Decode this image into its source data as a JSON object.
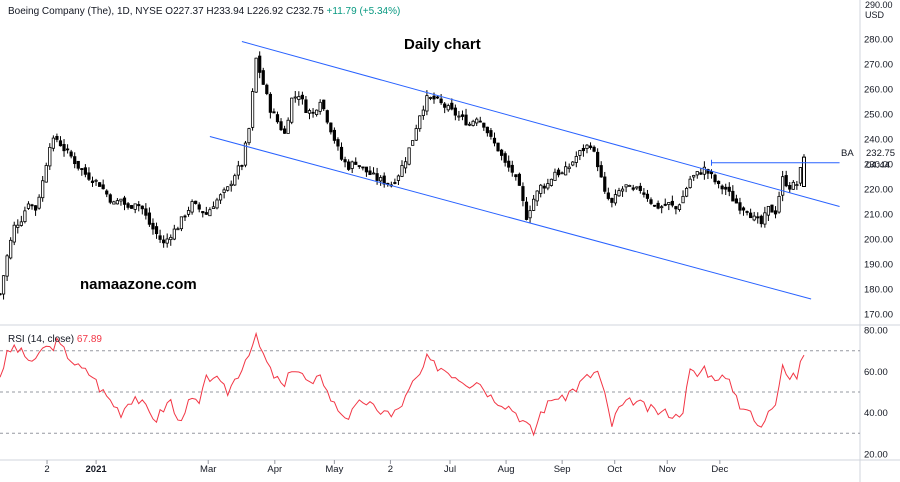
{
  "header": {
    "symbol_line": "Boeing Company (The), 1D, NYSE  O227.37  H233.94  L226.92  C232.75",
    "change": "+11.79 (+5.34%)"
  },
  "title": "Daily chart",
  "watermark": "namaazone.com",
  "price_axis": {
    "currency_top": "290.00",
    "currency": "USD"
  },
  "last_price": {
    "value": "232.75",
    "time_left": "04:44",
    "ticker": "BA"
  },
  "rsi": {
    "label": "RSI (14, close)",
    "value": "67.89"
  },
  "colors": {
    "up": "#000000",
    "down": "#000000",
    "channel": "#2962ff",
    "rsi_line": "#f23645",
    "rsi_bands": "#9598a1",
    "grid": "#e0e3eb",
    "level": "#2962ff"
  },
  "chart_data": [
    {
      "type": "candlestick",
      "title": "Daily chart",
      "x_tick_labels": [
        "2",
        "2021",
        "Mar",
        "Apr",
        "May",
        "2",
        "Jul",
        "Aug",
        "Sep",
        "Oct",
        "Nov",
        "Dec"
      ],
      "y_ticks": [
        170,
        180,
        190,
        200,
        210,
        220,
        230,
        240,
        250,
        260,
        270,
        280
      ],
      "ylim": [
        166,
        290
      ],
      "x_range_trading_days": [
        0,
        235
      ],
      "series": [
        {
          "name": "BA",
          "approx_close_path": [
            [
              0,
              178
            ],
            [
              2,
              193
            ],
            [
              4,
              205
            ],
            [
              6,
              208
            ],
            [
              8,
              215
            ],
            [
              10,
              212
            ],
            [
              12,
              223
            ],
            [
              14,
              238
            ],
            [
              16,
              240
            ],
            [
              18,
              236
            ],
            [
              20,
              233
            ],
            [
              22,
              229
            ],
            [
              24,
              226
            ],
            [
              26,
              224
            ],
            [
              28,
              222
            ],
            [
              30,
              218
            ],
            [
              32,
              214
            ],
            [
              34,
              216
            ],
            [
              36,
              212
            ],
            [
              38,
              215
            ],
            [
              40,
              212
            ],
            [
              42,
              206
            ],
            [
              44,
              202
            ],
            [
              46,
              198
            ],
            [
              48,
              202
            ],
            [
              50,
              205
            ],
            [
              52,
              210
            ],
            [
              54,
              214
            ],
            [
              56,
              212
            ],
            [
              58,
              210
            ],
            [
              60,
              214
            ],
            [
              62,
              217
            ],
            [
              64,
              220
            ],
            [
              66,
              226
            ],
            [
              68,
              230
            ],
            [
              70,
              244
            ],
            [
              72,
              272
            ],
            [
              74,
              262
            ],
            [
              76,
              252
            ],
            [
              78,
              247
            ],
            [
              80,
              242
            ],
            [
              82,
              256
            ],
            [
              84,
              258
            ],
            [
              86,
              252
            ],
            [
              88,
              250
            ],
            [
              90,
              256
            ],
            [
              92,
              248
            ],
            [
              94,
              240
            ],
            [
              96,
              232
            ],
            [
              98,
              229
            ],
            [
              100,
              231
            ],
            [
              102,
              228
            ],
            [
              104,
              226
            ],
            [
              106,
              224
            ],
            [
              108,
              223
            ],
            [
              110,
              222
            ],
            [
              112,
              226
            ],
            [
              114,
              232
            ],
            [
              116,
              240
            ],
            [
              118,
              250
            ],
            [
              120,
              256
            ],
            [
              122,
              256
            ],
            [
              124,
              254
            ],
            [
              126,
              252
            ],
            [
              128,
              250
            ],
            [
              130,
              248
            ],
            [
              132,
              246
            ],
            [
              134,
              249
            ],
            [
              136,
              246
            ],
            [
              138,
              240
            ],
            [
              140,
              236
            ],
            [
              142,
              230
            ],
            [
              144,
              227
            ],
            [
              146,
              220
            ],
            [
              148,
              209
            ],
            [
              150,
              216
            ],
            [
              152,
              221
            ],
            [
              154,
              222
            ],
            [
              156,
              227
            ],
            [
              158,
              226
            ],
            [
              160,
              229
            ],
            [
              162,
              233
            ],
            [
              164,
              236
            ],
            [
              166,
              238
            ],
            [
              168,
              230
            ],
            [
              170,
              218
            ],
            [
              172,
              214
            ],
            [
              174,
              219
            ],
            [
              176,
              221
            ],
            [
              178,
              219
            ],
            [
              180,
              220
            ],
            [
              182,
              217
            ],
            [
              184,
              213
            ],
            [
              186,
              213
            ],
            [
              188,
              214
            ],
            [
              190,
              212
            ],
            [
              192,
              217
            ],
            [
              194,
              224
            ],
            [
              196,
              226
            ],
            [
              198,
              228
            ],
            [
              200,
              225
            ],
            [
              202,
              221
            ],
            [
              204,
              220
            ],
            [
              206,
              216
            ],
            [
              208,
              213
            ],
            [
              210,
              212
            ],
            [
              212,
              208
            ],
            [
              214,
              206
            ],
            [
              216,
              212
            ],
            [
              218,
              211
            ],
            [
              220,
              224
            ],
            [
              222,
              221
            ],
            [
              224,
              222
            ],
            [
              226,
              232.75
            ]
          ]
        }
      ],
      "annotations": {
        "channel_upper": [
          [
            68,
            279
          ],
          [
            236,
            213
          ]
        ],
        "channel_lower": [
          [
            59,
            241
          ],
          [
            228,
            176
          ]
        ],
        "resistance_level": [
          [
            200,
            230.5
          ],
          [
            236,
            230.5
          ]
        ]
      }
    },
    {
      "type": "line",
      "title": "RSI (14, close)",
      "y_ticks": [
        20,
        40,
        60,
        80
      ],
      "ylim": [
        18,
        82
      ],
      "bands": [
        30,
        50,
        70
      ],
      "series": [
        {
          "name": "RSI (14, close)",
          "approx_path": [
            [
              0,
              58
            ],
            [
              2,
              68
            ],
            [
              4,
              72
            ],
            [
              6,
              69
            ],
            [
              8,
              66
            ],
            [
              10,
              64
            ],
            [
              12,
              72
            ],
            [
              14,
              71
            ],
            [
              16,
              74
            ],
            [
              18,
              70
            ],
            [
              20,
              66
            ],
            [
              22,
              62
            ],
            [
              24,
              60
            ],
            [
              26,
              58
            ],
            [
              28,
              52
            ],
            [
              30,
              48
            ],
            [
              32,
              44
            ],
            [
              34,
              40
            ],
            [
              36,
              45
            ],
            [
              38,
              48
            ],
            [
              40,
              44
            ],
            [
              42,
              40
            ],
            [
              44,
              37
            ],
            [
              46,
              42
            ],
            [
              48,
              46
            ],
            [
              50,
              35
            ],
            [
              52,
              42
            ],
            [
              54,
              46
            ],
            [
              56,
              44
            ],
            [
              58,
              56
            ],
            [
              60,
              58
            ],
            [
              62,
              53
            ],
            [
              64,
              50
            ],
            [
              66,
              56
            ],
            [
              68,
              62
            ],
            [
              70,
              70
            ],
            [
              72,
              76
            ],
            [
              74,
              68
            ],
            [
              76,
              60
            ],
            [
              78,
              56
            ],
            [
              80,
              52
            ],
            [
              82,
              62
            ],
            [
              84,
              60
            ],
            [
              86,
              56
            ],
            [
              88,
              52
            ],
            [
              90,
              60
            ],
            [
              92,
              50
            ],
            [
              94,
              44
            ],
            [
              96,
              40
            ],
            [
              98,
              38
            ],
            [
              100,
              42
            ],
            [
              102,
              46
            ],
            [
              104,
              44
            ],
            [
              106,
              40
            ],
            [
              108,
              42
            ],
            [
              110,
              38
            ],
            [
              112,
              42
            ],
            [
              114,
              47
            ],
            [
              116,
              54
            ],
            [
              118,
              58
            ],
            [
              120,
              66
            ],
            [
              122,
              63
            ],
            [
              124,
              62
            ],
            [
              126,
              60
            ],
            [
              128,
              58
            ],
            [
              130,
              56
            ],
            [
              132,
              54
            ],
            [
              134,
              56
            ],
            [
              136,
              52
            ],
            [
              138,
              48
            ],
            [
              140,
              46
            ],
            [
              142,
              44
            ],
            [
              144,
              42
            ],
            [
              146,
              38
            ],
            [
              148,
              34
            ],
            [
              150,
              30
            ],
            [
              152,
              40
            ],
            [
              154,
              44
            ],
            [
              156,
              48
            ],
            [
              158,
              46
            ],
            [
              160,
              50
            ],
            [
              162,
              52
            ],
            [
              164,
              56
            ],
            [
              166,
              58
            ],
            [
              168,
              60
            ],
            [
              170,
              48
            ],
            [
              172,
              34
            ],
            [
              174,
              42
            ],
            [
              176,
              44
            ],
            [
              178,
              46
            ],
            [
              180,
              44
            ],
            [
              182,
              42
            ],
            [
              184,
              41
            ],
            [
              186,
              40
            ],
            [
              188,
              40
            ],
            [
              190,
              38
            ],
            [
              192,
              42
            ],
            [
              194,
              60
            ],
            [
              196,
              58
            ],
            [
              198,
              62
            ],
            [
              200,
              57
            ],
            [
              202,
              58
            ],
            [
              204,
              56
            ],
            [
              206,
              52
            ],
            [
              208,
              44
            ],
            [
              210,
              42
            ],
            [
              212,
              36
            ],
            [
              214,
              32
            ],
            [
              216,
              42
            ],
            [
              218,
              46
            ],
            [
              220,
              64
            ],
            [
              222,
              56
            ],
            [
              224,
              58
            ],
            [
              226,
              67.89
            ]
          ]
        }
      ]
    }
  ]
}
